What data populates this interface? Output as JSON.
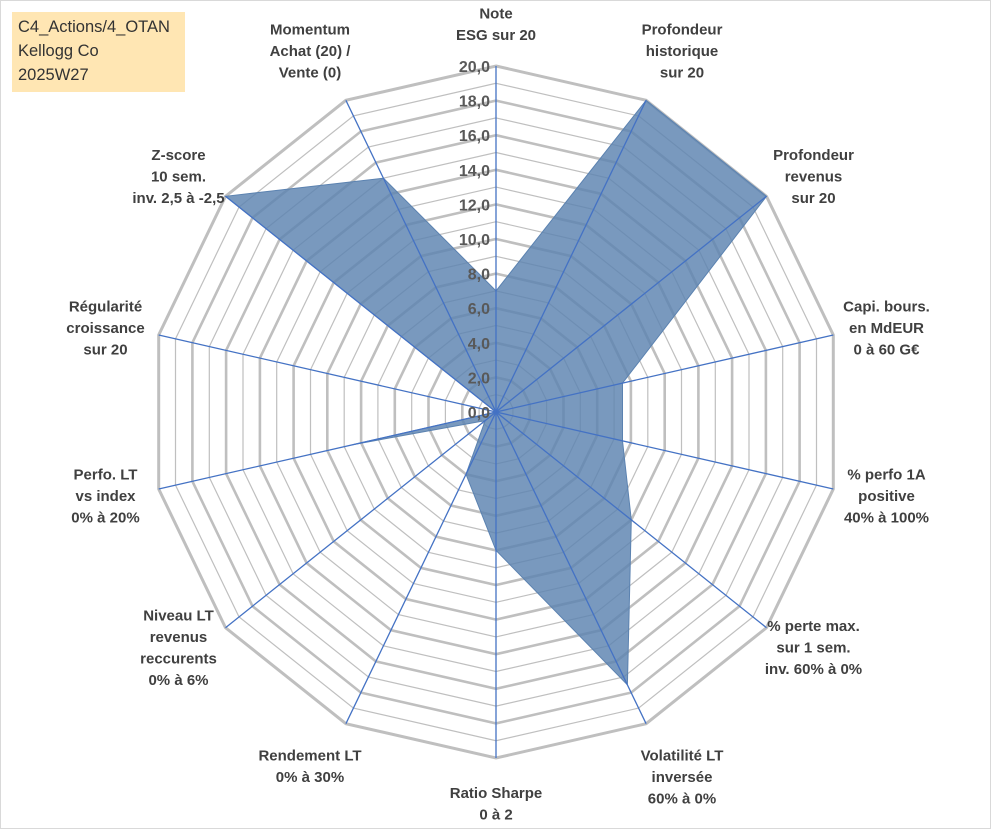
{
  "info_box": {
    "line1": "C4_Actions/4_OTAN",
    "line2": "Kellogg Co",
    "line3": "2025W27"
  },
  "chart_data": {
    "type": "radar",
    "title": "",
    "rlim": [
      0,
      20
    ],
    "r_ticks": [
      "0,0",
      "2,0",
      "4,0",
      "6,0",
      "8,0",
      "10,0",
      "12,0",
      "14,0",
      "16,0",
      "18,0",
      "20,0"
    ],
    "grid": true,
    "axes": [
      {
        "label": [
          "Note",
          "ESG sur 20"
        ],
        "value": 7.0
      },
      {
        "label": [
          "Profondeur",
          "historique",
          "sur 20"
        ],
        "value": 20.0
      },
      {
        "label": [
          "Profondeur",
          "revenus",
          "sur 20"
        ],
        "value": 20.0
      },
      {
        "label": [
          "Capi. bours.",
          "en MdEUR",
          "0 à 60 G€"
        ],
        "value": 7.5
      },
      {
        "label": [
          "% perfo 1A",
          "positive",
          "40% à 100%"
        ],
        "value": 7.5
      },
      {
        "label": [
          "% perte max.",
          "sur 1 sem.",
          "inv. 60% à 0%"
        ],
        "value": 10.0
      },
      {
        "label": [
          "Volatilité LT",
          "inversée",
          "60% à 0%"
        ],
        "value": 17.5
      },
      {
        "label": [
          "Ratio Sharpe",
          "0 à 2"
        ],
        "value": 8.0
      },
      {
        "label": [
          "Rendement LT",
          "0% à 30%"
        ],
        "value": 4.0
      },
      {
        "label": [
          "Niveau LT",
          "revenus",
          "reccurents",
          "0% à 6%"
        ],
        "value": 0.8
      },
      {
        "label": [
          "Perfo. LT",
          "vs index",
          "0% à 20%"
        ],
        "value": 8.5
      },
      {
        "label": [
          "Régularité",
          "croissance",
          "sur 20"
        ],
        "value": 0.0
      },
      {
        "label": [
          "Z-score",
          "10 sem.",
          "inv. 2,5 à -2,5"
        ],
        "value": 20.0
      },
      {
        "label": [
          "Momentum",
          "Achat (20) /",
          "Vente (0)"
        ],
        "value": 15.0
      }
    ],
    "colors": {
      "fill": "#5b82b0",
      "spoke": "#4472c4",
      "grid": "#bfbfbf",
      "tick": "#595959"
    }
  }
}
